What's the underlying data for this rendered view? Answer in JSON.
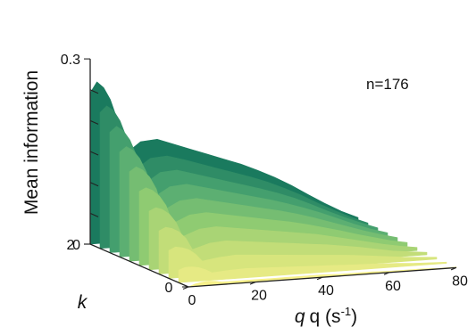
{
  "chart_data": {
    "type": "surface3d",
    "title": "",
    "annotation": "n=176",
    "zlabel": "Mean information",
    "ylabel": "k",
    "xlabel_main": "q (s",
    "xlabel_sup": "-1",
    "xlabel_close": ")",
    "xlim": [
      0,
      80
    ],
    "zlim": [
      0,
      0.3
    ],
    "klim": [
      0,
      2
    ],
    "x_ticks": [
      "0",
      "20",
      "40",
      "60",
      "80"
    ],
    "z_ticks": [
      "0",
      "0.3"
    ],
    "k_ticks": [
      "0",
      "2"
    ],
    "colormap": [
      "#f6f08a",
      "#cfe27a",
      "#8fcb72",
      "#4fa872",
      "#1a7a5e"
    ],
    "x": [
      0,
      2,
      4,
      6,
      8,
      10,
      15,
      20,
      25,
      30,
      35,
      40,
      45,
      50,
      55,
      60,
      65,
      70,
      75,
      80
    ],
    "k": [
      0,
      0.2,
      0.4,
      0.6,
      0.8,
      1.0,
      1.2,
      1.4,
      1.6,
      1.8,
      2.0
    ],
    "series": [
      {
        "k": 0,
        "values": [
          0.0,
          0.004,
          0.006,
          0.007,
          0.006,
          0.004,
          0.004,
          0.004,
          0.004,
          0.004,
          0.004,
          0.004,
          0.003,
          0.003,
          0.003,
          0.002,
          0.002,
          0.002,
          0.001,
          0.001
        ]
      },
      {
        "k": 0.2,
        "values": [
          0.02,
          0.024,
          0.024,
          0.022,
          0.018,
          0.012,
          0.014,
          0.015,
          0.014,
          0.013,
          0.012,
          0.011,
          0.01,
          0.009,
          0.008,
          0.007,
          0.006,
          0.004,
          0.003,
          0.002
        ]
      },
      {
        "k": 0.4,
        "values": [
          0.045,
          0.05,
          0.048,
          0.044,
          0.036,
          0.024,
          0.028,
          0.03,
          0.028,
          0.026,
          0.024,
          0.022,
          0.02,
          0.018,
          0.016,
          0.013,
          0.01,
          0.007,
          0.005,
          0.003
        ]
      },
      {
        "k": 0.6,
        "values": [
          0.07,
          0.075,
          0.072,
          0.066,
          0.055,
          0.036,
          0.044,
          0.046,
          0.043,
          0.04,
          0.037,
          0.034,
          0.031,
          0.028,
          0.024,
          0.02,
          0.015,
          0.01,
          0.007,
          0.004
        ]
      },
      {
        "k": 0.8,
        "values": [
          0.095,
          0.1,
          0.096,
          0.088,
          0.074,
          0.05,
          0.06,
          0.062,
          0.058,
          0.054,
          0.05,
          0.046,
          0.042,
          0.038,
          0.032,
          0.026,
          0.02,
          0.014,
          0.009,
          0.005
        ]
      },
      {
        "k": 1.0,
        "values": [
          0.12,
          0.125,
          0.12,
          0.11,
          0.094,
          0.064,
          0.076,
          0.078,
          0.073,
          0.068,
          0.063,
          0.058,
          0.053,
          0.047,
          0.04,
          0.033,
          0.025,
          0.018,
          0.011,
          0.006
        ]
      },
      {
        "k": 1.2,
        "values": [
          0.145,
          0.152,
          0.146,
          0.134,
          0.114,
          0.078,
          0.092,
          0.094,
          0.088,
          0.082,
          0.076,
          0.07,
          0.064,
          0.057,
          0.049,
          0.04,
          0.031,
          0.022,
          0.014,
          0.007
        ]
      },
      {
        "k": 1.4,
        "values": [
          0.17,
          0.178,
          0.171,
          0.157,
          0.134,
          0.092,
          0.108,
          0.11,
          0.103,
          0.096,
          0.089,
          0.082,
          0.075,
          0.067,
          0.058,
          0.048,
          0.037,
          0.026,
          0.016,
          0.008
        ]
      },
      {
        "k": 1.6,
        "values": [
          0.195,
          0.204,
          0.196,
          0.18,
          0.154,
          0.106,
          0.124,
          0.126,
          0.118,
          0.11,
          0.102,
          0.094,
          0.086,
          0.077,
          0.067,
          0.055,
          0.042,
          0.03,
          0.019,
          0.009
        ]
      },
      {
        "k": 1.8,
        "values": [
          0.22,
          0.23,
          0.222,
          0.204,
          0.175,
          0.121,
          0.14,
          0.142,
          0.134,
          0.125,
          0.116,
          0.107,
          0.098,
          0.088,
          0.076,
          0.063,
          0.048,
          0.034,
          0.021,
          0.01
        ]
      },
      {
        "k": 2.0,
        "values": [
          0.245,
          0.262,
          0.252,
          0.232,
          0.2,
          0.14,
          0.16,
          0.162,
          0.152,
          0.142,
          0.132,
          0.122,
          0.112,
          0.1,
          0.087,
          0.072,
          0.055,
          0.039,
          0.024,
          0.012
        ]
      }
    ]
  }
}
